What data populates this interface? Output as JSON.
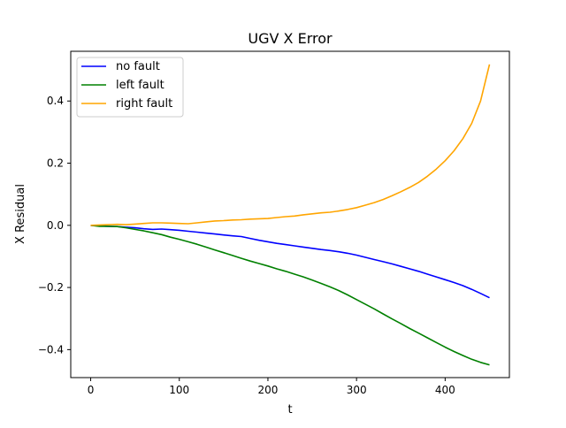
{
  "chart_data": {
    "type": "line",
    "title": "UGV X Error",
    "xlabel": "t",
    "ylabel": "X Residual",
    "xlim": [
      -22.5,
      472.5
    ],
    "ylim": [
      -0.49,
      0.56
    ],
    "xticks": [
      0,
      100,
      200,
      300,
      400
    ],
    "xtick_labels": [
      "0",
      "100",
      "200",
      "300",
      "400"
    ],
    "yticks": [
      -0.4,
      -0.2,
      0.0,
      0.2,
      0.4
    ],
    "ytick_labels": [
      "−0.4",
      "−0.2",
      "0.0",
      "0.2",
      "0.4"
    ],
    "grid": false,
    "legend_position": "top-left",
    "series": [
      {
        "name": "no fault",
        "color": "#0000ff",
        "x": [
          0,
          10,
          20,
          30,
          40,
          50,
          60,
          70,
          80,
          90,
          100,
          110,
          120,
          130,
          140,
          150,
          160,
          170,
          180,
          190,
          200,
          210,
          220,
          230,
          240,
          250,
          260,
          270,
          280,
          290,
          300,
          310,
          320,
          330,
          340,
          350,
          360,
          370,
          380,
          390,
          400,
          410,
          420,
          430,
          440,
          450
        ],
        "y": [
          0.0,
          -0.002,
          -0.003,
          -0.004,
          -0.006,
          -0.008,
          -0.011,
          -0.013,
          -0.012,
          -0.014,
          -0.016,
          -0.019,
          -0.022,
          -0.025,
          -0.028,
          -0.031,
          -0.034,
          -0.036,
          -0.042,
          -0.048,
          -0.053,
          -0.058,
          -0.062,
          -0.066,
          -0.07,
          -0.074,
          -0.078,
          -0.081,
          -0.085,
          -0.09,
          -0.096,
          -0.103,
          -0.11,
          -0.117,
          -0.124,
          -0.132,
          -0.14,
          -0.148,
          -0.157,
          -0.166,
          -0.175,
          -0.184,
          -0.194,
          -0.206,
          -0.219,
          -0.233
        ]
      },
      {
        "name": "left fault",
        "color": "#008000",
        "x": [
          0,
          10,
          20,
          30,
          40,
          50,
          60,
          70,
          80,
          90,
          100,
          110,
          120,
          130,
          140,
          150,
          160,
          170,
          180,
          190,
          200,
          210,
          220,
          230,
          240,
          250,
          260,
          270,
          280,
          290,
          300,
          310,
          320,
          330,
          340,
          350,
          360,
          370,
          380,
          390,
          400,
          410,
          420,
          430,
          440,
          450
        ],
        "y": [
          0.0,
          -0.003,
          -0.003,
          -0.004,
          -0.008,
          -0.013,
          -0.018,
          -0.024,
          -0.03,
          -0.038,
          -0.045,
          -0.053,
          -0.061,
          -0.07,
          -0.079,
          -0.088,
          -0.097,
          -0.106,
          -0.115,
          -0.123,
          -0.131,
          -0.14,
          -0.148,
          -0.157,
          -0.166,
          -0.176,
          -0.187,
          -0.198,
          -0.21,
          -0.224,
          -0.239,
          -0.254,
          -0.269,
          -0.285,
          -0.301,
          -0.316,
          -0.332,
          -0.347,
          -0.362,
          -0.377,
          -0.392,
          -0.406,
          -0.419,
          -0.431,
          -0.441,
          -0.449
        ]
      },
      {
        "name": "right fault",
        "color": "#ffa500",
        "x": [
          0,
          10,
          20,
          30,
          40,
          50,
          60,
          70,
          80,
          90,
          100,
          110,
          120,
          130,
          140,
          150,
          160,
          170,
          180,
          190,
          200,
          210,
          220,
          230,
          240,
          250,
          260,
          270,
          280,
          290,
          300,
          310,
          320,
          330,
          340,
          350,
          360,
          370,
          380,
          390,
          400,
          410,
          420,
          430,
          440,
          450
        ],
        "y": [
          0.0,
          0.001,
          0.002,
          0.003,
          0.002,
          0.004,
          0.006,
          0.008,
          0.008,
          0.007,
          0.006,
          0.005,
          0.008,
          0.011,
          0.014,
          0.015,
          0.017,
          0.018,
          0.02,
          0.021,
          0.022,
          0.025,
          0.028,
          0.03,
          0.034,
          0.037,
          0.04,
          0.042,
          0.046,
          0.051,
          0.057,
          0.065,
          0.073,
          0.083,
          0.095,
          0.108,
          0.122,
          0.138,
          0.158,
          0.181,
          0.208,
          0.24,
          0.279,
          0.328,
          0.4,
          0.518
        ]
      }
    ]
  }
}
